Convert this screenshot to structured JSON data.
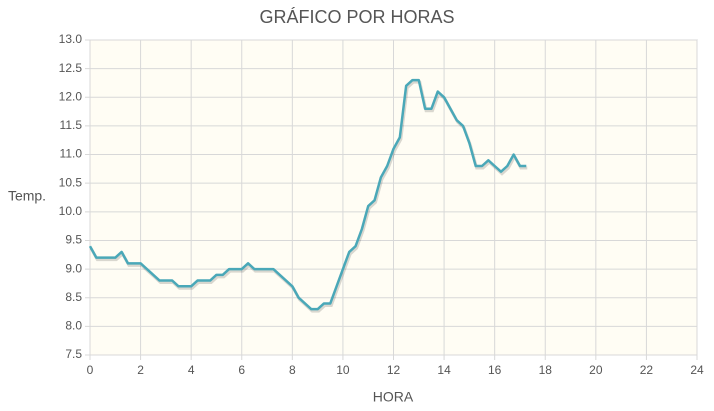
{
  "chart_data": {
    "type": "line",
    "title": "GRÁFICO POR HORAS",
    "x_label": "HORA",
    "y_label": "Temp.",
    "x": [
      0,
      0.25,
      0.5,
      0.75,
      1,
      1.25,
      1.5,
      1.75,
      2,
      2.25,
      2.5,
      2.75,
      3,
      3.25,
      3.5,
      3.75,
      4,
      4.25,
      4.5,
      4.75,
      5,
      5.25,
      5.5,
      5.75,
      6,
      6.25,
      6.5,
      6.75,
      7,
      7.25,
      7.5,
      7.75,
      8,
      8.25,
      8.5,
      8.75,
      9,
      9.25,
      9.5,
      9.75,
      10,
      10.25,
      10.5,
      10.75,
      11,
      11.25,
      11.5,
      11.75,
      12,
      12.25,
      12.5,
      12.75,
      13,
      13.25,
      13.5,
      13.75,
      14,
      14.25,
      14.5,
      14.75,
      15,
      15.25,
      15.5,
      15.75,
      16,
      16.25,
      16.5,
      16.75,
      17,
      17.25
    ],
    "series": [
      {
        "name": "Temp.",
        "color": "#4aa8b8",
        "values": [
          9.4,
          9.2,
          9.2,
          9.2,
          9.2,
          9.3,
          9.1,
          9.1,
          9.1,
          9.0,
          8.9,
          8.8,
          8.8,
          8.8,
          8.7,
          8.7,
          8.7,
          8.8,
          8.8,
          8.8,
          8.9,
          8.9,
          9.0,
          9.0,
          9.0,
          9.1,
          9.0,
          9.0,
          9.0,
          9.0,
          8.9,
          8.8,
          8.7,
          8.5,
          8.4,
          8.3,
          8.3,
          8.4,
          8.4,
          8.7,
          9.0,
          9.3,
          9.4,
          9.7,
          10.1,
          10.2,
          10.6,
          10.8,
          11.1,
          11.3,
          12.2,
          12.3,
          12.3,
          11.8,
          11.8,
          12.1,
          12.0,
          11.8,
          11.6,
          11.5,
          11.2,
          10.8,
          10.8,
          10.9,
          10.8,
          10.7,
          10.8,
          11.0,
          10.8,
          10.8
        ]
      }
    ],
    "xlim": [
      0,
      24
    ],
    "xticks": [
      0,
      2,
      4,
      6,
      8,
      10,
      12,
      14,
      16,
      18,
      20,
      22,
      24
    ],
    "ylim": [
      7.5,
      13
    ],
    "yticks": [
      {
        "value": 7.5,
        "label": "7.5"
      },
      {
        "value": 8,
        "label": "8.0"
      },
      {
        "value": 8.5,
        "label": "8.5"
      },
      {
        "value": 9,
        "label": "9.0"
      },
      {
        "value": 9.5,
        "label": "9.5"
      },
      {
        "value": 10,
        "label": "10.0"
      },
      {
        "value": 10.5,
        "label": "10.5"
      },
      {
        "value": 11,
        "label": "11.0"
      },
      {
        "value": 11.5,
        "label": "11.5"
      },
      {
        "value": 12,
        "label": "12.0"
      },
      {
        "value": 12.5,
        "label": "12.5"
      },
      {
        "value": 13,
        "label": "13.0"
      }
    ],
    "grid": true
  }
}
